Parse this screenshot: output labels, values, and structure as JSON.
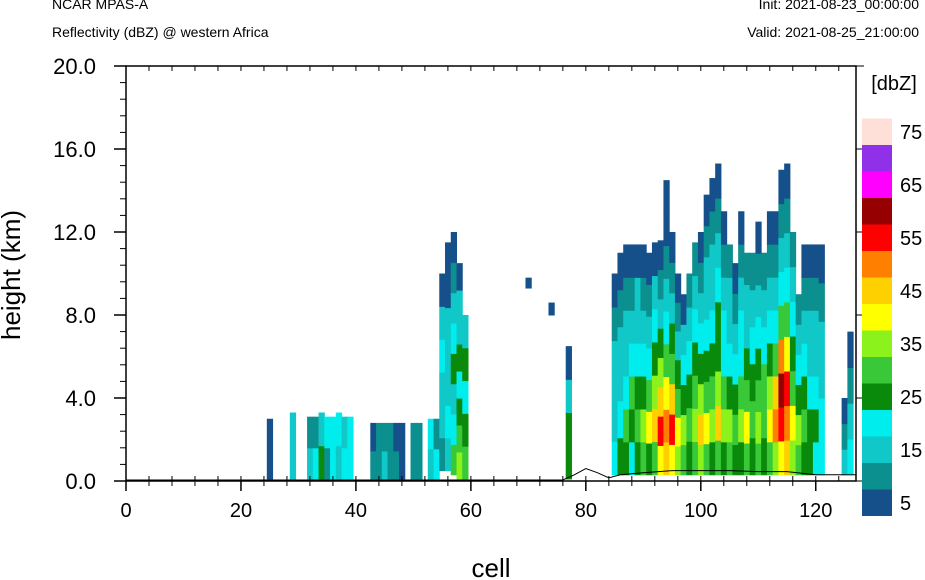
{
  "header": {
    "left_line1": "NCAR MPAS-A",
    "left_line2": "Reflectivity (dBZ) @ western Africa",
    "right_line1": "Init: 2021-08-23_00:00:00",
    "right_line2": "Valid: 2021-08-25_21:00:00"
  },
  "chart_data": {
    "type": "heatmap",
    "title": "Reflectivity (dBZ) @ western Africa",
    "xlabel": "cell",
    "ylabel": "height (km)",
    "xlim": [
      0,
      127
    ],
    "ylim": [
      0,
      20
    ],
    "x_ticks": [
      "0",
      "20",
      "40",
      "60",
      "80",
      "100",
      "120"
    ],
    "y_ticks": [
      "0.0",
      "4.0",
      "8.0",
      "12.0",
      "16.0",
      "20.0"
    ],
    "colorbar": {
      "unit": "[dbZ]",
      "levels": [
        5,
        10,
        15,
        20,
        25,
        30,
        35,
        40,
        45,
        50,
        55,
        60,
        65,
        70,
        75
      ],
      "labels": [
        "5",
        "15",
        "25",
        "35",
        "45",
        "55",
        "65",
        "75"
      ],
      "colors": [
        "#16508b",
        "#0b8f8f",
        "#10c8c8",
        "#00eded",
        "#0a8a0a",
        "#38c838",
        "#8cf21c",
        "#ffff00",
        "#ffd000",
        "#ff8000",
        "#ff0000",
        "#960000",
        "#ff00ff",
        "#9030e8",
        "#ffe0d8"
      ]
    },
    "columns": [
      {
        "x": 25,
        "bot": 0.1,
        "top": 3.0,
        "levels": [
          5
        ]
      },
      {
        "x": 29,
        "bot": 0.1,
        "top": 3.3,
        "levels": [
          15
        ]
      },
      {
        "x": 32,
        "bot": 0.1,
        "top": 3.1,
        "levels": [
          15,
          10
        ]
      },
      {
        "x": 33,
        "bot": 0.1,
        "top": 3.1,
        "levels": [
          20,
          10
        ]
      },
      {
        "x": 34,
        "bot": 0.1,
        "top": 3.3,
        "levels": [
          25,
          15
        ]
      },
      {
        "x": 35,
        "bot": 0.1,
        "top": 3.1,
        "levels": [
          10,
          20
        ]
      },
      {
        "x": 36,
        "bot": 0.1,
        "top": 3.1,
        "levels": [
          20,
          20
        ]
      },
      {
        "x": 37,
        "bot": 0.1,
        "top": 3.3,
        "levels": [
          15,
          20
        ]
      },
      {
        "x": 38,
        "bot": 0.1,
        "top": 3.1,
        "levels": [
          20,
          15
        ]
      },
      {
        "x": 39,
        "bot": 0.1,
        "top": 3.1,
        "levels": [
          20
        ]
      },
      {
        "x": 43,
        "bot": 0.1,
        "top": 2.8,
        "levels": [
          10,
          5
        ]
      },
      {
        "x": 44,
        "bot": 0.1,
        "top": 2.8,
        "levels": [
          10,
          10
        ]
      },
      {
        "x": 45,
        "bot": 0.1,
        "top": 2.8,
        "levels": [
          15,
          10
        ]
      },
      {
        "x": 46,
        "bot": 0.1,
        "top": 2.8,
        "levels": [
          10,
          10
        ]
      },
      {
        "x": 47,
        "bot": 0.1,
        "top": 2.8,
        "levels": [
          10,
          5
        ]
      },
      {
        "x": 48,
        "bot": 0.1,
        "top": 2.8,
        "levels": [
          5
        ]
      },
      {
        "x": 50,
        "bot": 0.1,
        "top": 2.8,
        "levels": [
          10,
          10
        ]
      },
      {
        "x": 51,
        "bot": 0.1,
        "top": 2.8,
        "levels": [
          10
        ]
      },
      {
        "x": 53,
        "bot": 0.1,
        "top": 3.0,
        "levels": [
          15,
          20
        ]
      },
      {
        "x": 54,
        "bot": 0.1,
        "top": 3.0,
        "levels": [
          20,
          10
        ]
      },
      {
        "x": 55,
        "bot": 0.5,
        "top": 10.0,
        "levels": [
          10,
          15,
          15,
          20,
          15,
          5
        ]
      },
      {
        "x": 56,
        "bot": 0.5,
        "top": 11.5,
        "levels": [
          15,
          20,
          15,
          15,
          15,
          5,
          5
        ]
      },
      {
        "x": 57,
        "bot": 0.3,
        "top": 12.0,
        "levels": [
          30,
          20,
          15,
          25,
          20,
          15,
          10,
          5
        ]
      },
      {
        "x": 58,
        "bot": 0.1,
        "top": 10.5,
        "levels": [
          35,
          30,
          25,
          20,
          25,
          15,
          15,
          5
        ]
      },
      {
        "x": 59,
        "bot": 0.1,
        "top": 8.0,
        "levels": [
          30,
          25,
          20,
          25,
          15
        ]
      },
      {
        "x": 70,
        "bot": 9.3,
        "top": 9.8,
        "levels": [
          5
        ]
      },
      {
        "x": 74,
        "bot": 8.0,
        "top": 8.6,
        "levels": [
          5
        ]
      },
      {
        "x": 77,
        "bot": 0.1,
        "top": 6.5,
        "levels": [
          25,
          25,
          15,
          5
        ]
      },
      {
        "x": 85,
        "bot": 0.3,
        "top": 10.0,
        "levels": [
          20,
          15,
          15,
          15,
          10,
          5
        ]
      },
      {
        "x": 86,
        "bot": 0.3,
        "top": 11.0,
        "levels": [
          25,
          20,
          15,
          15,
          10,
          5
        ]
      },
      {
        "x": 87,
        "bot": 0.3,
        "top": 11.4,
        "levels": [
          25,
          30,
          20,
          15,
          15,
          10,
          5
        ]
      },
      {
        "x": 88,
        "bot": 0.3,
        "top": 11.4,
        "levels": [
          20,
          25,
          30,
          20,
          15,
          10,
          5
        ]
      },
      {
        "x": 89,
        "bot": 0.3,
        "top": 11.4,
        "levels": [
          25,
          30,
          25,
          20,
          15,
          15,
          5
        ]
      },
      {
        "x": 90,
        "bot": 0.3,
        "top": 11.4,
        "levels": [
          30,
          35,
          25,
          20,
          15,
          10,
          5
        ]
      },
      {
        "x": 91,
        "bot": 0.3,
        "top": 11.0,
        "levels": [
          25,
          40,
          30,
          20,
          15,
          10,
          5
        ]
      },
      {
        "x": 92,
        "bot": 0.3,
        "top": 11.5,
        "levels": [
          30,
          45,
          35,
          25,
          20,
          15,
          5
        ]
      },
      {
        "x": 93,
        "bot": 0.3,
        "top": 11.6,
        "levels": [
          40,
          55,
          45,
          35,
          25,
          15,
          10,
          5
        ]
      },
      {
        "x": 94,
        "bot": 0.3,
        "top": 14.5,
        "levels": [
          45,
          50,
          40,
          30,
          20,
          15,
          10,
          5,
          5
        ]
      },
      {
        "x": 95,
        "bot": 0.3,
        "top": 12.0,
        "levels": [
          40,
          55,
          45,
          30,
          25,
          15,
          10,
          5
        ]
      },
      {
        "x": 96,
        "bot": 0.3,
        "top": 10.0,
        "levels": [
          35,
          40,
          30,
          25,
          15,
          10,
          5
        ]
      },
      {
        "x": 97,
        "bot": 0.3,
        "top": 9.0,
        "levels": [
          30,
          35,
          25,
          20,
          15,
          5
        ]
      },
      {
        "x": 98,
        "bot": 0.3,
        "top": 10.0,
        "levels": [
          25,
          30,
          25,
          20,
          15,
          10
        ]
      },
      {
        "x": 99,
        "bot": 0.3,
        "top": 11.5,
        "levels": [
          30,
          35,
          30,
          25,
          20,
          15,
          10
        ]
      },
      {
        "x": 100,
        "bot": 0.3,
        "top": 12.0,
        "levels": [
          35,
          45,
          35,
          25,
          20,
          15,
          10,
          5
        ]
      },
      {
        "x": 101,
        "bot": 0.3,
        "top": 13.8,
        "levels": [
          30,
          40,
          30,
          25,
          20,
          15,
          15,
          10,
          5
        ]
      },
      {
        "x": 102,
        "bot": 0.3,
        "top": 14.6,
        "levels": [
          25,
          35,
          30,
          25,
          20,
          15,
          15,
          10,
          5
        ]
      },
      {
        "x": 103,
        "bot": 0.3,
        "top": 15.3,
        "levels": [
          30,
          45,
          35,
          25,
          25,
          20,
          15,
          10,
          5
        ]
      },
      {
        "x": 104,
        "bot": 0.3,
        "top": 13.0,
        "levels": [
          25,
          35,
          30,
          20,
          20,
          15,
          10,
          5
        ]
      },
      {
        "x": 105,
        "bot": 0.3,
        "top": 11.4,
        "levels": [
          30,
          35,
          25,
          20,
          15,
          15,
          10
        ]
      },
      {
        "x": 106,
        "bot": 0.3,
        "top": 10.5,
        "levels": [
          25,
          30,
          25,
          20,
          15,
          10,
          5
        ]
      },
      {
        "x": 107,
        "bot": 0.3,
        "top": 13.0,
        "levels": [
          25,
          35,
          30,
          20,
          20,
          15,
          10,
          5
        ]
      },
      {
        "x": 108,
        "bot": 0.3,
        "top": 11.0,
        "levels": [
          30,
          40,
          30,
          25,
          15,
          15,
          10
        ]
      },
      {
        "x": 109,
        "bot": 0.3,
        "top": 11.0,
        "levels": [
          25,
          30,
          25,
          20,
          15,
          10
        ]
      },
      {
        "x": 110,
        "bot": 0.3,
        "top": 12.5,
        "levels": [
          30,
          35,
          30,
          25,
          20,
          15,
          10,
          5
        ]
      },
      {
        "x": 111,
        "bot": 0.3,
        "top": 11.0,
        "levels": [
          25,
          30,
          30,
          20,
          15,
          10
        ]
      },
      {
        "x": 112,
        "bot": 0.3,
        "top": 13.0,
        "levels": [
          30,
          40,
          35,
          25,
          20,
          15,
          10,
          5
        ]
      },
      {
        "x": 113,
        "bot": 0.3,
        "top": 13.0,
        "levels": [
          35,
          50,
          45,
          30,
          20,
          15,
          10,
          5
        ]
      },
      {
        "x": 114,
        "bot": 0.3,
        "top": 15.0,
        "levels": [
          40,
          55,
          60,
          50,
          30,
          20,
          15,
          10,
          5
        ]
      },
      {
        "x": 115,
        "bot": 0.3,
        "top": 15.3,
        "levels": [
          45,
          50,
          55,
          40,
          30,
          20,
          15,
          10,
          5
        ]
      },
      {
        "x": 116,
        "bot": 0.3,
        "top": 12.0,
        "levels": [
          35,
          40,
          30,
          25,
          20,
          15,
          10
        ]
      },
      {
        "x": 117,
        "bot": 0.3,
        "top": 9.0,
        "levels": [
          30,
          35,
          25,
          20,
          15,
          10
        ]
      },
      {
        "x": 118,
        "bot": 0.3,
        "top": 11.4,
        "levels": [
          25,
          30,
          25,
          20,
          15,
          10,
          5
        ]
      },
      {
        "x": 119,
        "bot": 0.3,
        "top": 11.4,
        "levels": [
          25,
          25,
          20,
          15,
          15,
          10,
          5
        ]
      },
      {
        "x": 120,
        "bot": 0.3,
        "top": 11.4,
        "levels": [
          20,
          25,
          20,
          15,
          15,
          10,
          5
        ]
      },
      {
        "x": 121,
        "bot": 0.3,
        "top": 11.4,
        "levels": [
          20,
          20,
          15,
          15,
          10,
          5
        ]
      },
      {
        "x": 125,
        "bot": 0.3,
        "top": 4.0,
        "levels": [
          15,
          10,
          5
        ]
      },
      {
        "x": 126,
        "bot": 0.3,
        "top": 7.2,
        "levels": [
          20,
          15,
          10,
          5
        ]
      }
    ],
    "terrain": [
      [
        0,
        0.05
      ],
      [
        76,
        0.05
      ],
      [
        78,
        0.3
      ],
      [
        80,
        0.6
      ],
      [
        82,
        0.4
      ],
      [
        84,
        0.15
      ],
      [
        86,
        0.3
      ],
      [
        90,
        0.4
      ],
      [
        95,
        0.5
      ],
      [
        100,
        0.5
      ],
      [
        105,
        0.5
      ],
      [
        110,
        0.45
      ],
      [
        115,
        0.45
      ],
      [
        120,
        0.3
      ],
      [
        127,
        0.3
      ]
    ]
  }
}
